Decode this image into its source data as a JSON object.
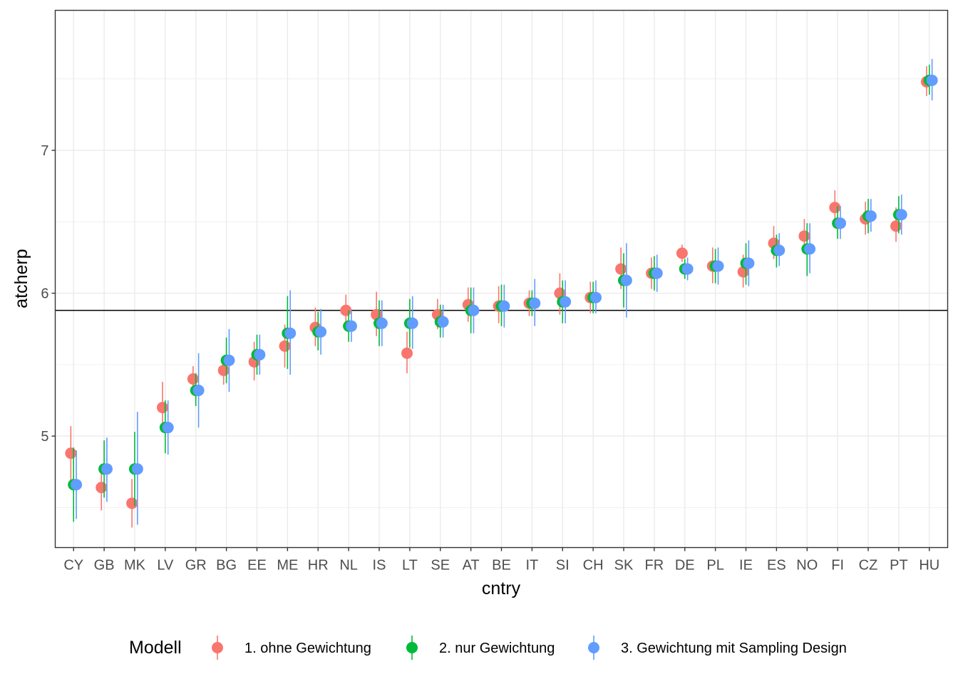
{
  "chart_data": {
    "type": "scatter",
    "xlabel": "cntry",
    "ylabel": "atcherp",
    "ylim": [
      4.22,
      7.98
    ],
    "yticks": [
      5,
      6,
      7
    ],
    "grid": true,
    "reference_line": 5.88,
    "categories": [
      "CY",
      "GB",
      "MK",
      "LV",
      "GR",
      "BG",
      "EE",
      "ME",
      "HR",
      "NL",
      "IS",
      "LT",
      "SE",
      "AT",
      "BE",
      "IT",
      "SI",
      "CH",
      "SK",
      "FR",
      "DE",
      "PL",
      "IE",
      "ES",
      "NO",
      "FI",
      "CZ",
      "PT",
      "HU"
    ],
    "legend": {
      "title": "Modell",
      "position": "bottom"
    },
    "series": [
      {
        "name": "1. ohne Gewichtung",
        "color": "#F8766D",
        "values": [
          4.88,
          4.64,
          4.53,
          5.2,
          5.4,
          5.46,
          5.52,
          5.63,
          5.76,
          5.88,
          5.85,
          5.58,
          5.85,
          5.92,
          5.91,
          5.93,
          6.0,
          5.97,
          6.17,
          6.14,
          6.28,
          6.19,
          6.15,
          6.35,
          6.4,
          6.6,
          6.52,
          6.47,
          7.48
        ],
        "lower": [
          4.69,
          4.48,
          4.36,
          5.04,
          5.31,
          5.36,
          5.39,
          5.48,
          5.63,
          5.78,
          5.7,
          5.44,
          5.75,
          5.8,
          5.79,
          5.84,
          5.85,
          5.86,
          6.03,
          6.03,
          6.22,
          6.07,
          6.04,
          6.24,
          6.28,
          6.49,
          6.41,
          6.36,
          7.38
        ],
        "upper": [
          5.07,
          4.8,
          4.7,
          5.38,
          5.49,
          5.56,
          5.66,
          5.78,
          5.9,
          5.99,
          6.01,
          5.73,
          5.96,
          6.04,
          6.05,
          6.02,
          6.14,
          6.08,
          6.32,
          6.25,
          6.34,
          6.32,
          6.27,
          6.47,
          6.52,
          6.72,
          6.64,
          6.6,
          7.59
        ]
      },
      {
        "name": "2. nur Gewichtung",
        "color": "#00BA38",
        "values": [
          4.66,
          4.77,
          4.77,
          5.06,
          5.32,
          5.53,
          5.57,
          5.72,
          5.73,
          5.77,
          5.79,
          5.79,
          5.8,
          5.88,
          5.91,
          5.93,
          5.94,
          5.97,
          6.09,
          6.14,
          6.17,
          6.19,
          6.21,
          6.3,
          6.31,
          6.49,
          6.54,
          6.55,
          7.49
        ],
        "lower": [
          4.4,
          4.57,
          4.51,
          4.88,
          5.21,
          5.37,
          5.43,
          5.47,
          5.6,
          5.66,
          5.63,
          5.62,
          5.69,
          5.72,
          5.77,
          5.84,
          5.79,
          5.86,
          5.9,
          6.02,
          6.1,
          6.07,
          6.06,
          6.18,
          6.12,
          6.38,
          6.42,
          6.42,
          7.39
        ],
        "upper": [
          4.92,
          4.97,
          5.03,
          5.25,
          5.44,
          5.69,
          5.71,
          5.98,
          5.87,
          5.88,
          5.95,
          5.96,
          5.92,
          6.04,
          6.06,
          6.02,
          6.09,
          6.08,
          6.28,
          6.26,
          6.24,
          6.31,
          6.35,
          6.41,
          6.49,
          6.61,
          6.66,
          6.68,
          7.6
        ]
      },
      {
        "name": "3. Gewichtung mit Sampling Design",
        "color": "#619CFF",
        "values": [
          4.66,
          4.77,
          4.77,
          5.06,
          5.32,
          5.53,
          5.57,
          5.72,
          5.73,
          5.77,
          5.79,
          5.79,
          5.8,
          5.88,
          5.91,
          5.93,
          5.94,
          5.97,
          6.09,
          6.14,
          6.17,
          6.19,
          6.21,
          6.3,
          6.31,
          6.49,
          6.54,
          6.55,
          7.49
        ],
        "lower": [
          4.42,
          4.54,
          4.38,
          4.87,
          5.06,
          5.31,
          5.43,
          5.43,
          5.57,
          5.66,
          5.63,
          5.61,
          5.69,
          5.72,
          5.76,
          5.77,
          5.79,
          5.86,
          5.83,
          6.01,
          6.09,
          6.06,
          6.05,
          6.19,
          6.14,
          6.38,
          6.43,
          6.41,
          7.35
        ],
        "upper": [
          4.9,
          4.99,
          5.17,
          5.25,
          5.58,
          5.75,
          5.71,
          6.02,
          5.89,
          5.88,
          5.95,
          5.98,
          5.92,
          6.04,
          6.06,
          6.1,
          6.09,
          6.09,
          6.35,
          6.27,
          6.25,
          6.32,
          6.37,
          6.42,
          6.49,
          6.61,
          6.66,
          6.69,
          7.64
        ]
      }
    ]
  }
}
